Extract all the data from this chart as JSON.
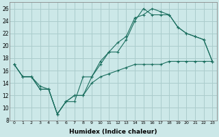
{
  "xlabel": "Humidex (Indice chaleur)",
  "background_color": "#cce8e8",
  "grid_color": "#aacccc",
  "line_color": "#1a6e5e",
  "xlim": [
    -0.5,
    23.5
  ],
  "ylim": [
    8,
    27
  ],
  "yticks": [
    8,
    10,
    12,
    14,
    16,
    18,
    20,
    22,
    24,
    26
  ],
  "xticks": [
    0,
    1,
    2,
    3,
    4,
    5,
    6,
    7,
    8,
    9,
    10,
    11,
    12,
    13,
    14,
    15,
    16,
    17,
    18,
    19,
    20,
    21,
    22,
    23
  ],
  "line1_x": [
    0,
    1,
    2,
    3,
    4,
    5,
    6,
    7,
    8,
    9,
    10,
    11,
    12,
    13,
    14,
    15,
    16,
    17,
    18,
    19,
    20,
    21,
    22,
    23
  ],
  "line1_y": [
    17,
    15,
    15,
    13,
    13,
    9,
    11,
    11,
    15,
    15,
    17,
    19,
    19,
    21,
    24,
    26,
    25,
    25,
    25,
    23,
    22,
    21.5,
    21,
    17.5
  ],
  "line2_x": [
    0,
    1,
    2,
    3,
    4,
    5,
    6,
    7,
    8,
    9,
    10,
    11,
    12,
    13,
    14,
    15,
    16,
    17,
    18,
    19,
    20,
    21,
    22,
    23
  ],
  "line2_y": [
    17,
    15,
    15,
    13,
    13,
    9,
    11,
    12,
    12,
    15,
    17.5,
    19,
    20.5,
    21.5,
    24.5,
    25,
    26,
    25.5,
    25,
    23,
    22,
    21.5,
    21,
    17.5
  ],
  "line3_x": [
    0,
    1,
    2,
    3,
    4,
    5,
    6,
    7,
    8,
    9,
    10,
    11,
    12,
    13,
    14,
    15,
    16,
    17,
    18,
    19,
    20,
    21,
    22,
    23
  ],
  "line3_y": [
    17,
    15,
    15,
    13.5,
    13,
    9,
    11,
    12,
    12,
    14,
    15,
    15.5,
    16,
    16.5,
    17,
    17,
    17,
    17,
    17.5,
    17.5,
    17.5,
    17.5,
    17.5,
    17.5
  ]
}
